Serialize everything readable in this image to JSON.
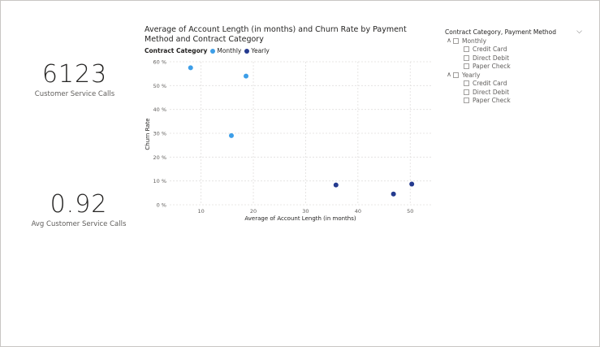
{
  "kpis": [
    {
      "value": "6123",
      "label": "Customer Service Calls"
    },
    {
      "value": "0.92",
      "label": "Avg Customer Service Calls"
    }
  ],
  "chart": {
    "title": "Average of Account Length (in months) and Churn Rate by Payment Method and Contract Category",
    "legend_title": "Contract Category",
    "colors": {
      "Monthly": "#3d9ee8",
      "Yearly": "#243a8f",
      "grid": "#e1dfdd",
      "axis_text": "#605e5c"
    }
  },
  "chart_data": {
    "type": "scatter",
    "title": "Average of Account Length (in months) and Churn Rate by Payment Method and Contract Category",
    "xlabel": "Average of Account Length (in months)",
    "ylabel": "Churn Rate",
    "xlim": [
      4,
      54
    ],
    "ylim": [
      0,
      60
    ],
    "x_ticks": [
      10,
      20,
      30,
      40,
      50
    ],
    "y_ticks": [
      0,
      10,
      20,
      30,
      40,
      50,
      60
    ],
    "y_tick_labels": [
      "0 %",
      "10 %",
      "20 %",
      "30 %",
      "40 %",
      "50 %",
      "60 %"
    ],
    "grid": true,
    "legend_position": "top-left",
    "series": [
      {
        "name": "Monthly",
        "points": [
          {
            "x": 8.0,
            "y": 57.5
          },
          {
            "x": 18.6,
            "y": 54.0
          },
          {
            "x": 15.8,
            "y": 29.0
          }
        ]
      },
      {
        "name": "Yearly",
        "points": [
          {
            "x": 35.8,
            "y": 8.3
          },
          {
            "x": 46.8,
            "y": 4.5
          },
          {
            "x": 50.3,
            "y": 8.7
          }
        ]
      }
    ]
  },
  "slicer": {
    "title": "Contract Category, Payment Method",
    "groups": [
      {
        "label": "Monthly",
        "children": [
          "Credit Card",
          "Direct Debit",
          "Paper Check"
        ]
      },
      {
        "label": "Yearly",
        "children": [
          "Credit Card",
          "Direct Debit",
          "Paper Check"
        ]
      }
    ]
  }
}
